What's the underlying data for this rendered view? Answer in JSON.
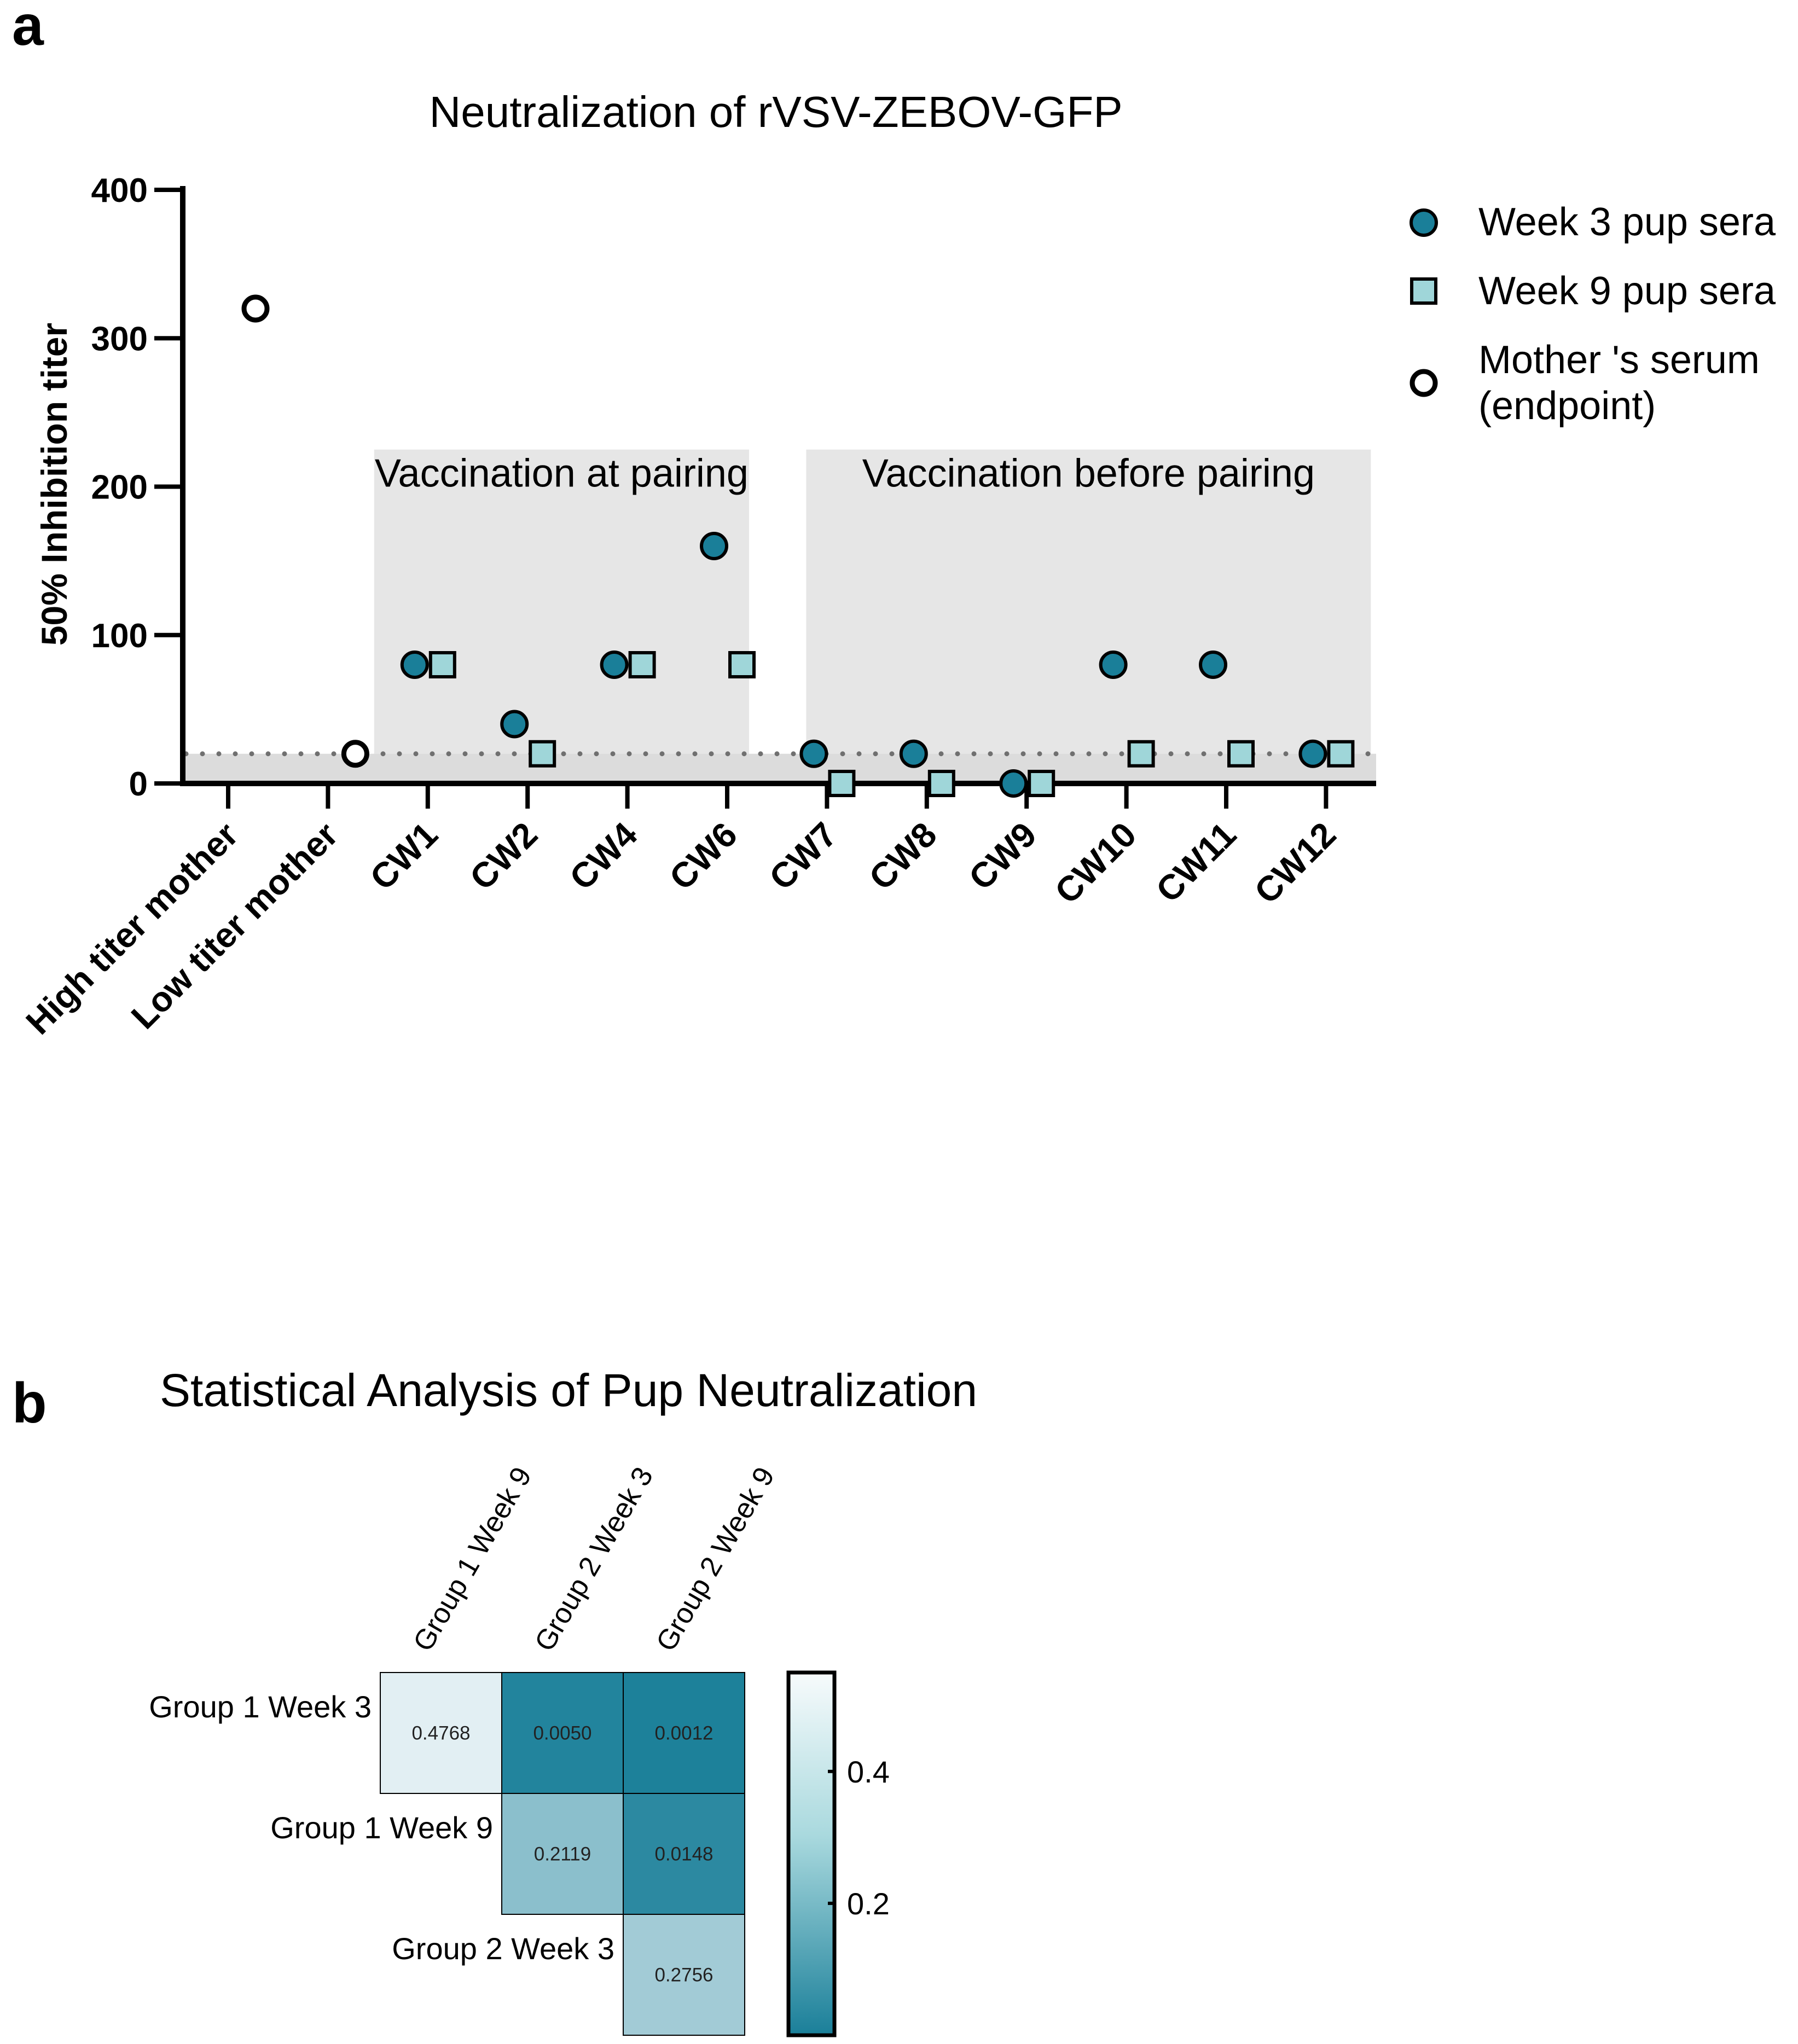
{
  "panel_a": {
    "label": "a"
  },
  "panel_b": {
    "label": "b"
  },
  "chart_data": [
    {
      "type": "scatter",
      "title": "Neutralization of rVSV-ZEBOV-GFP",
      "ylabel": "50% Inhibition titer",
      "xlabel": "",
      "ylim": [
        0,
        400
      ],
      "yticks": [
        0,
        100,
        200,
        300,
        400
      ],
      "categories": [
        "High titer mother",
        "Low titer mother",
        "CW1",
        "CW2",
        "CW4",
        "CW6",
        "CW7",
        "CW8",
        "CW9",
        "CW10",
        "CW11",
        "CW12"
      ],
      "series": [
        {
          "name": "Week 3 pup sera",
          "marker": "circle-filled",
          "color": "#1a7f99",
          "values": [
            null,
            null,
            80,
            40,
            80,
            160,
            20,
            20,
            0,
            80,
            80,
            20
          ]
        },
        {
          "name": "Week 9 pup sera",
          "marker": "square-filled",
          "color": "#9fd6d9",
          "values": [
            null,
            null,
            80,
            20,
            80,
            80,
            0,
            0,
            0,
            20,
            20,
            20
          ]
        },
        {
          "name": "Mother 's serum (endpoint)",
          "legend_lines": [
            "Mother 's serum",
            "(endpoint)"
          ],
          "marker": "circle-open",
          "color": "#000000",
          "values": [
            320,
            20,
            null,
            null,
            null,
            null,
            null,
            null,
            null,
            null,
            null,
            null
          ]
        }
      ],
      "detection_limit": 20,
      "regions": [
        {
          "label": "Vaccination at pairing",
          "from": "CW1",
          "to": "CW6"
        },
        {
          "label": "Vaccination before pairing",
          "from": "CW7",
          "to": "CW12"
        }
      ],
      "legend_position": "top-right",
      "grid": false
    },
    {
      "type": "heatmap",
      "title": "Statistical Analysis of Pup Neutralization",
      "columns": [
        "Group 1 Week 9",
        "Group 2 Week 3",
        "Group 2 Week 9"
      ],
      "rows": [
        "Group 1 Week 3",
        "Group 1 Week 9",
        "Group 2 Week 3"
      ],
      "cells": [
        [
          "0.4768",
          "0.0050",
          "0.0012"
        ],
        [
          null,
          "0.2119",
          "0.0148"
        ],
        [
          null,
          null,
          "0.2756"
        ]
      ],
      "colorscale": {
        "min": 0,
        "max": 0.55,
        "low_color": "#1a7f99",
        "high_color": "#f7fbfc",
        "ticks": [
          0.2,
          0.4
        ]
      }
    }
  ]
}
